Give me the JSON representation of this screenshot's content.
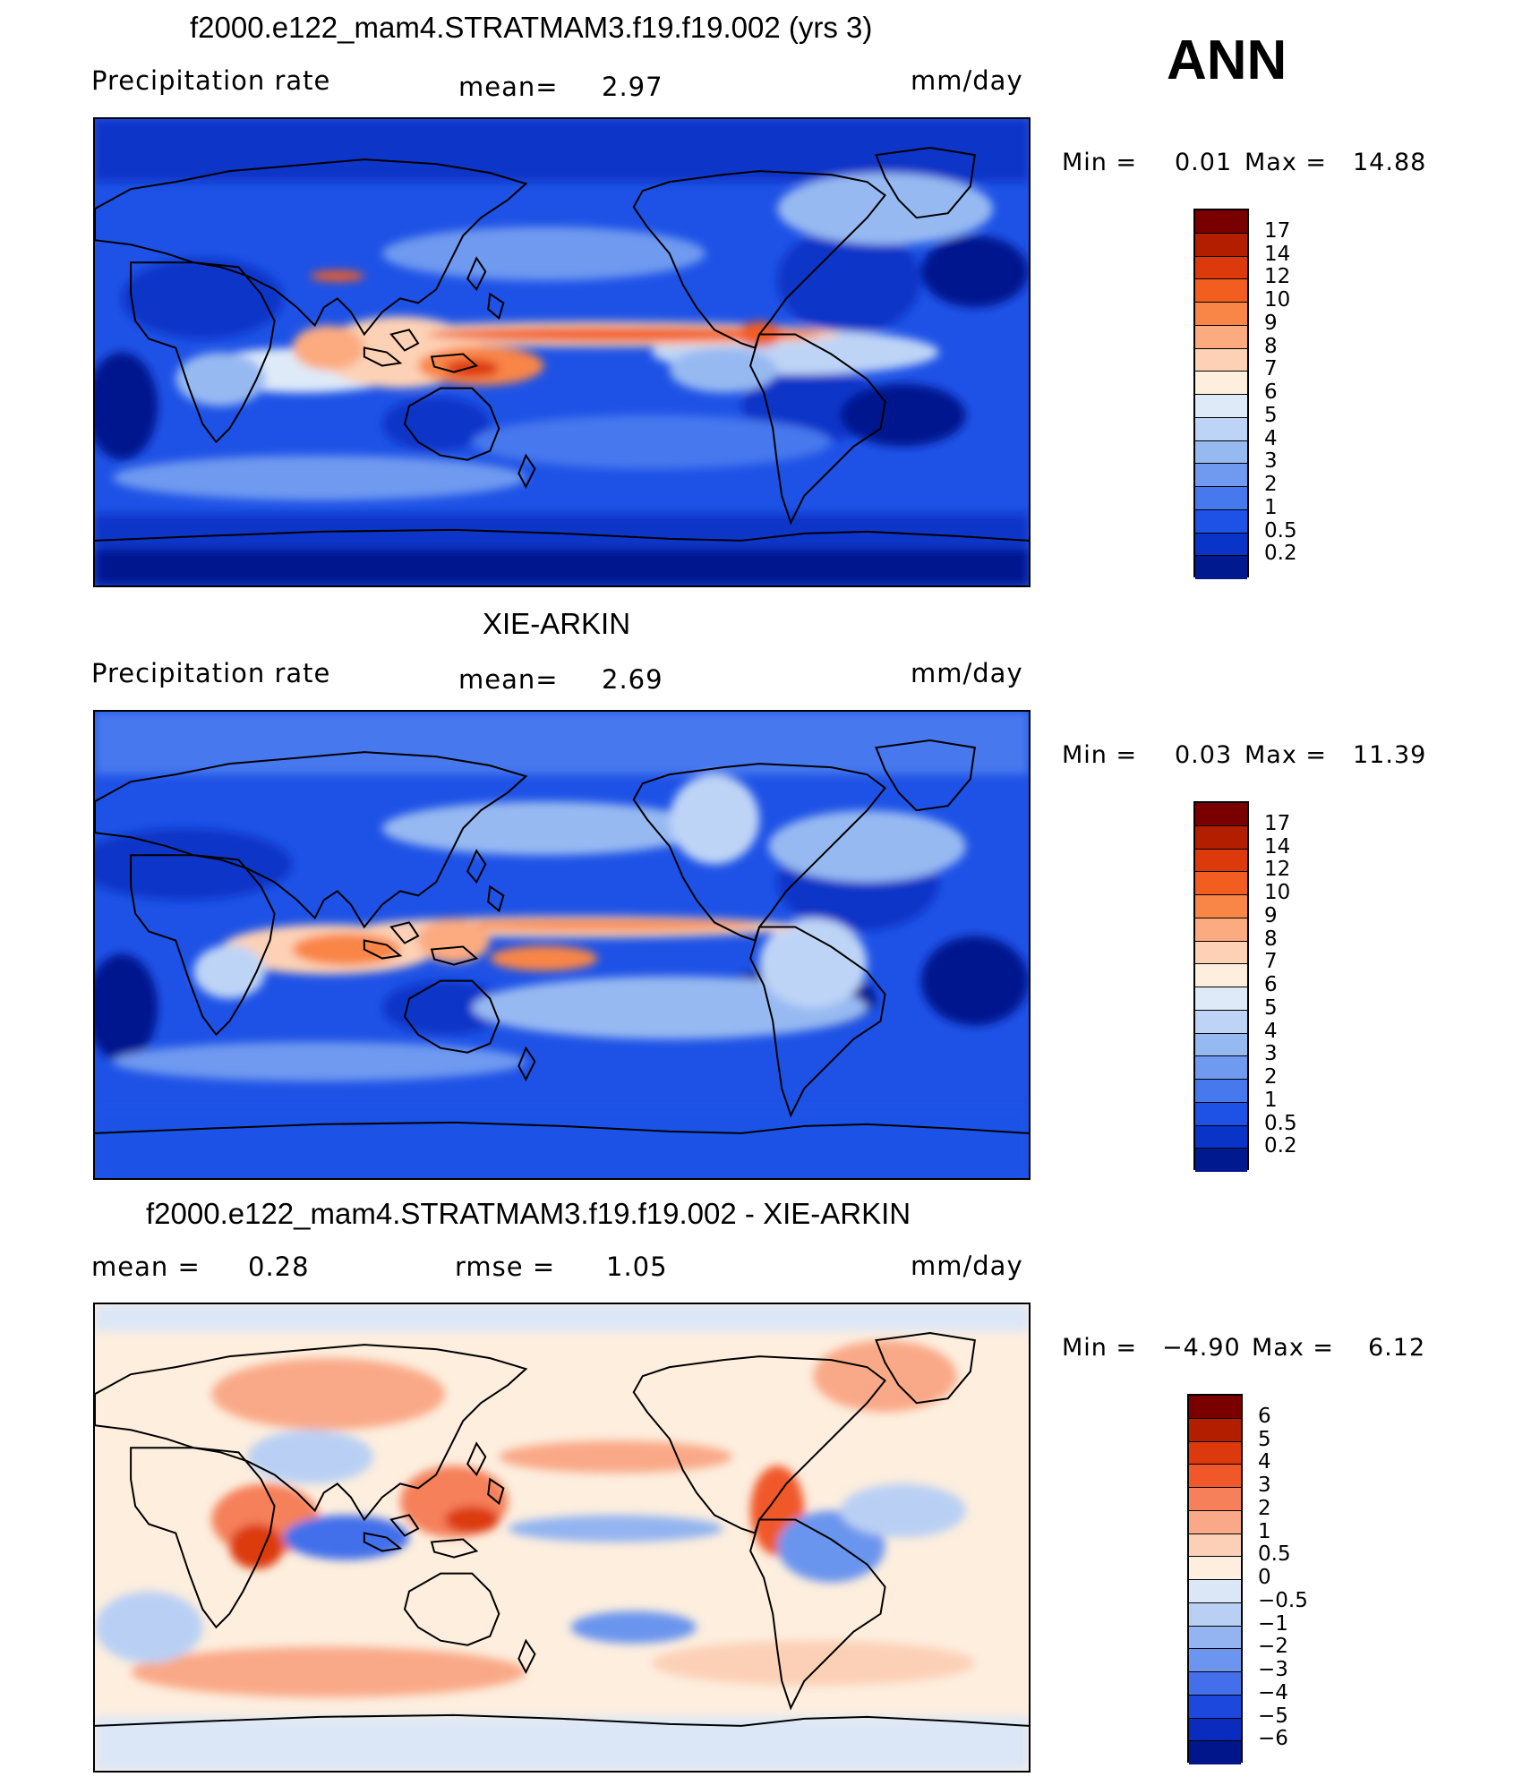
{
  "season": "ANN",
  "panels": [
    {
      "title": "f2000.e122_mam4.STRATMAM3.f19.f19.002 (yrs 3)",
      "left_label": "Precipitation  rate",
      "mid_label": "mean=",
      "mid_value": "2.97",
      "units": "mm/day",
      "min_label": "Min  =",
      "min_value": "0.01",
      "max_label": "Max  =",
      "max_value": "14.88",
      "colorbar": {
        "labels": [
          "17",
          "14",
          "12",
          "10",
          "9",
          "8",
          "7",
          "6",
          "5",
          "4",
          "3",
          "2",
          "1",
          "0.5",
          "0.2"
        ],
        "colors": [
          "#7a0000",
          "#b31e00",
          "#dc3a0c",
          "#f25d20",
          "#f98546",
          "#fcaa80",
          "#fdd1b5",
          "#fdeede",
          "#deeaf8",
          "#bed4f6",
          "#97b9f2",
          "#6f9af0",
          "#4678ee",
          "#1e52e6",
          "#0a34c8",
          "#00198f"
        ]
      }
    },
    {
      "title": "XIE-ARKIN",
      "left_label": "Precipitation  rate",
      "mid_label": "mean=",
      "mid_value": "2.69",
      "units": "mm/day",
      "min_label": "Min  =",
      "min_value": "0.03",
      "max_label": "Max  =",
      "max_value": "11.39",
      "colorbar": {
        "labels": [
          "17",
          "14",
          "12",
          "10",
          "9",
          "8",
          "7",
          "6",
          "5",
          "4",
          "3",
          "2",
          "1",
          "0.5",
          "0.2"
        ],
        "colors": [
          "#7a0000",
          "#b31e00",
          "#dc3a0c",
          "#f25d20",
          "#f98546",
          "#fcaa80",
          "#fdd1b5",
          "#fdeede",
          "#deeaf8",
          "#bed4f6",
          "#97b9f2",
          "#6f9af0",
          "#4678ee",
          "#1e52e6",
          "#0a34c8",
          "#00198f"
        ]
      }
    },
    {
      "title": "f2000.e122_mam4.STRATMAM3.f19.f19.002 - XIE-ARKIN",
      "left_label": "mean  =",
      "left_value": "0.28",
      "mid_label": "rmse  =",
      "mid_value": "1.05",
      "units": "mm/day",
      "min_label": "Min  =",
      "min_value": "−4.90",
      "max_label": "Max  =",
      "max_value": "6.12",
      "colorbar": {
        "labels": [
          "6",
          "5",
          "4",
          "3",
          "2",
          "1",
          "0.5",
          "0",
          "−0.5",
          "−1",
          "−2",
          "−3",
          "−4",
          "−5",
          "−6"
        ],
        "colors": [
          "#7a0000",
          "#b31e00",
          "#dc3a0c",
          "#f0582a",
          "#f5805a",
          "#f9a987",
          "#fcd0b6",
          "#fdeede",
          "#dbe7f7",
          "#b9d0f4",
          "#93b4f1",
          "#6b95ee",
          "#4370ea",
          "#1c48de",
          "#0a2cbe",
          "#00168a"
        ]
      }
    }
  ]
}
